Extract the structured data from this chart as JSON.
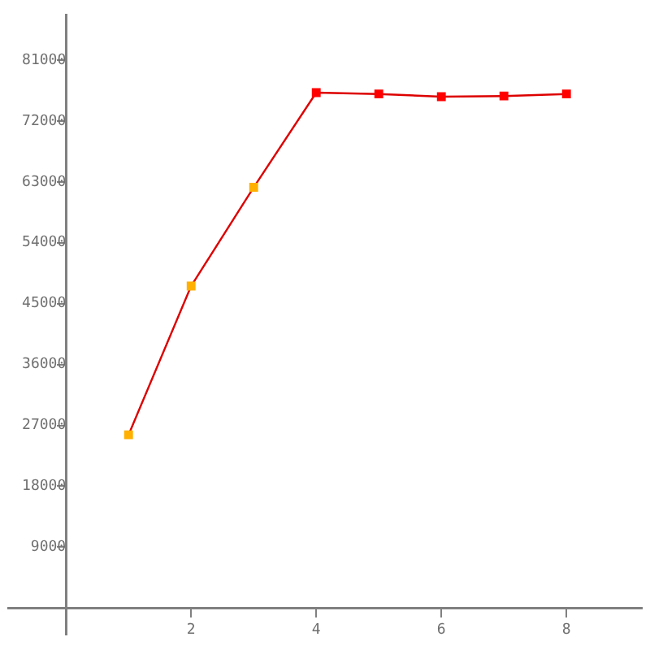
{
  "chart_data": {
    "type": "line",
    "x": [
      1,
      2,
      3,
      4,
      5,
      6,
      7,
      8
    ],
    "series": [
      {
        "color": "#dd0000",
        "colors": [
          "#ffb000",
          "#ffb000",
          "#ffb000",
          "#ff0000",
          "#ff0000",
          "#ff0000",
          "#ff0000",
          "#ff0000"
        ],
        "values": [
          25600,
          47600,
          62200,
          76200,
          76000,
          75600,
          75700,
          76000
        ]
      }
    ],
    "xlim": [
      -0.92,
      9.2
    ],
    "ylim": [
      -3960,
      87640
    ],
    "xticks": [
      2,
      4,
      6,
      8
    ],
    "yticks": [
      9000,
      18000,
      27000,
      36000,
      45000,
      54000,
      63000,
      72000,
      81000
    ],
    "grid": false,
    "legend": false,
    "marker": "square",
    "line_style": "solid"
  }
}
